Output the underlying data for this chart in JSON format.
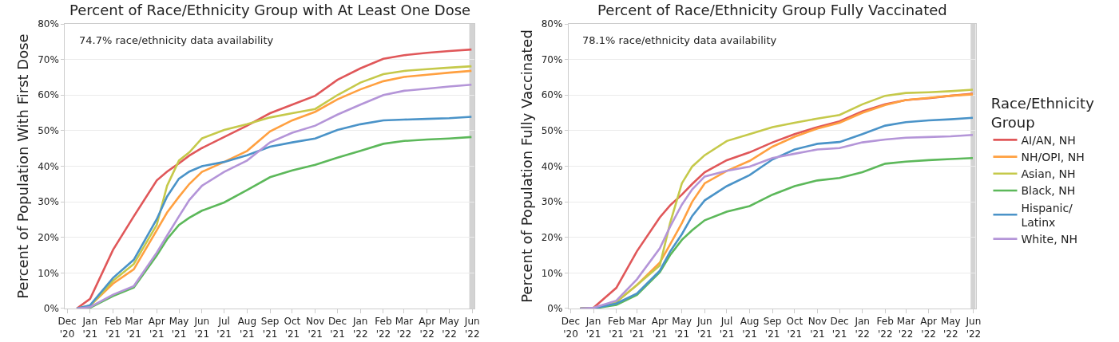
{
  "chart_data": [
    {
      "type": "line",
      "title": "Percent of Race/Ethnicity Group with At Least One Dose",
      "ylabel": "Percent of Population With First Dose",
      "annotations": [
        "74.7% race/ethnicity data availability"
      ],
      "x": [
        "2020-12-14",
        "2021-01-01",
        "2021-02-01",
        "2021-03-01",
        "2021-04-01",
        "2021-04-15",
        "2021-05-01",
        "2021-05-15",
        "2021-06-01",
        "2021-07-01",
        "2021-08-01",
        "2021-09-01",
        "2021-10-01",
        "2021-11-01",
        "2021-12-01",
        "2022-01-01",
        "2022-02-01",
        "2022-03-01",
        "2022-04-01",
        "2022-05-01",
        "2022-05-31"
      ],
      "series": [
        {
          "color": "#e05759",
          "values": [
            0,
            2.7,
            16.5,
            25.9,
            36,
            38.5,
            40.8,
            43,
            45.1,
            48.2,
            51.4,
            54.9,
            57.3,
            59.8,
            64.3,
            67.5,
            70.2,
            71.2,
            71.9,
            72.4,
            72.8
          ]
        },
        {
          "color": "#ffa040",
          "values": [
            0,
            0.8,
            7,
            11,
            22,
            27,
            31.4,
            35,
            38.4,
            41.2,
            44.3,
            49.8,
            52.9,
            55.3,
            58.8,
            61.6,
            63.9,
            65.1,
            65.7,
            66.3,
            66.8
          ]
        },
        {
          "color": "#c5c94a",
          "values": [
            0,
            0.7,
            7.8,
            12.5,
            23.5,
            34.5,
            41.6,
            43.9,
            47.8,
            50.2,
            51.8,
            53.7,
            54.9,
            56.1,
            60,
            63.5,
            65.9,
            66.8,
            67.3,
            67.7,
            68.1
          ]
        },
        {
          "color": "#5cb85a",
          "values": [
            0,
            0.2,
            3.5,
            5.9,
            14.9,
            19.5,
            23.5,
            25.5,
            27.5,
            29.8,
            33.3,
            36.9,
            38.8,
            40.4,
            42.4,
            44.3,
            46.3,
            47.1,
            47.5,
            47.8,
            48.2
          ]
        },
        {
          "color": "#4a93c8",
          "values": [
            0,
            0.9,
            8.6,
            13.7,
            25.1,
            31.5,
            36.5,
            38.5,
            40,
            41.2,
            43.1,
            45.5,
            46.7,
            47.8,
            50.2,
            51.8,
            52.9,
            53.1,
            53.3,
            53.5,
            53.9
          ]
        },
        {
          "color": "#b495d8",
          "values": [
            0,
            0.4,
            3.9,
            6.3,
            15.7,
            20.5,
            25.9,
            30.5,
            34.5,
            38.4,
            41.6,
            46.7,
            49.4,
            51.4,
            54.5,
            57.3,
            60,
            61.2,
            61.8,
            62.4,
            62.9
          ]
        }
      ],
      "xlim": [
        "2020-11-28",
        "2022-06-04"
      ],
      "xticks": [
        {
          "value": "2020-12-01",
          "label": "Dec\n'20"
        },
        {
          "value": "2021-01-01",
          "label": "Jan\n'21"
        },
        {
          "value": "2021-02-01",
          "label": "Feb\n'21"
        },
        {
          "value": "2021-03-01",
          "label": "Mar\n'21"
        },
        {
          "value": "2021-04-01",
          "label": "Apr\n'21"
        },
        {
          "value": "2021-05-01",
          "label": "May\n'21"
        },
        {
          "value": "2021-06-01",
          "label": "Jun\n'21"
        },
        {
          "value": "2021-07-01",
          "label": "Jul\n'21"
        },
        {
          "value": "2021-08-01",
          "label": "Aug\n'21"
        },
        {
          "value": "2021-09-01",
          "label": "Sep\n'21"
        },
        {
          "value": "2021-10-01",
          "label": "Oct\n'21"
        },
        {
          "value": "2021-11-01",
          "label": "Nov\n'21"
        },
        {
          "value": "2021-12-01",
          "label": "Dec\n'21"
        },
        {
          "value": "2022-01-01",
          "label": "Jan\n'22"
        },
        {
          "value": "2022-02-01",
          "label": "Feb\n'22"
        },
        {
          "value": "2022-03-01",
          "label": "Mar\n'22"
        },
        {
          "value": "2022-04-01",
          "label": "Apr\n'22"
        },
        {
          "value": "2022-05-01",
          "label": "May\n'22"
        },
        {
          "value": "2022-06-01",
          "label": "Jun\n'22"
        }
      ],
      "ylim": [
        0,
        80
      ],
      "yticks": [
        {
          "value": 0,
          "label": "0%"
        },
        {
          "value": 10,
          "label": "10%"
        },
        {
          "value": 20,
          "label": "20%"
        },
        {
          "value": 30,
          "label": "30%"
        },
        {
          "value": 40,
          "label": "40%"
        },
        {
          "value": 50,
          "label": "50%"
        },
        {
          "value": 60,
          "label": "60%"
        },
        {
          "value": 70,
          "label": "70%"
        },
        {
          "value": 80,
          "label": "80%"
        }
      ],
      "bands": [
        {
          "axis": "x",
          "from": "2022-05-28",
          "to": "2022-06-04",
          "color": "#d3d3d3"
        }
      ],
      "grid": "y",
      "line_style": "solid",
      "marker": "none"
    },
    {
      "type": "line",
      "title": "Percent of Race/Ethnicity Group Fully Vaccinated",
      "ylabel": "Percent of Population Fully Vaccinated",
      "legend_title": "Race/Ethnicity\nGroup",
      "annotations": [
        "78.1% race/ethnicity data availability"
      ],
      "x": [
        "2020-12-14",
        "2021-01-01",
        "2021-02-01",
        "2021-03-01",
        "2021-04-01",
        "2021-04-15",
        "2021-05-01",
        "2021-05-15",
        "2021-06-01",
        "2021-07-01",
        "2021-08-01",
        "2021-09-01",
        "2021-10-01",
        "2021-11-01",
        "2021-12-01",
        "2022-01-01",
        "2022-02-01",
        "2022-03-01",
        "2022-04-01",
        "2022-05-01",
        "2022-05-31"
      ],
      "series": [
        {
          "name": "AI/AN, NH",
          "color": "#e05759",
          "values": [
            0,
            0.2,
            5.8,
            16.1,
            25.6,
            29,
            32,
            35,
            38.3,
            41.7,
            43.9,
            46.7,
            49,
            51,
            52.6,
            55.4,
            57.4,
            58.6,
            59.1,
            59.8,
            60.4
          ]
        },
        {
          "name": "NH/OPI, NH",
          "color": "#ffa040",
          "values": [
            0,
            0.2,
            1.8,
            6.6,
            12.9,
            18,
            24,
            30,
            35.2,
            38.7,
            41.5,
            45.5,
            48.3,
            50.6,
            52.2,
            55,
            57.2,
            58.6,
            59.2,
            59.8,
            60.2
          ]
        },
        {
          "name": "Asian, NH",
          "color": "#c5c94a",
          "values": [
            0,
            0.2,
            1.8,
            6.6,
            12.1,
            24,
            35.2,
            39.9,
            43.1,
            47.1,
            49,
            51,
            52.2,
            53.4,
            54.4,
            57.4,
            59.8,
            60.6,
            60.8,
            61.1,
            61.5
          ]
        },
        {
          "name": "Black, NH",
          "color": "#5cb85a",
          "values": [
            0,
            0,
            1,
            3.8,
            10.2,
            15,
            19.3,
            22,
            24.8,
            27.2,
            28.8,
            32,
            34.4,
            36,
            36.7,
            38.3,
            40.7,
            41.3,
            41.7,
            42,
            42.3
          ]
        },
        {
          "name": "Hispanic/\nLatinx",
          "color": "#4a93c8",
          "values": [
            0,
            0,
            1.4,
            4.2,
            10.6,
            16,
            20.9,
            26,
            30.4,
            34.4,
            37.5,
            41.9,
            44.7,
            46.3,
            46.8,
            49,
            51.4,
            52.4,
            52.9,
            53.2,
            53.6
          ]
        },
        {
          "name": "White, NH",
          "color": "#b495d8",
          "values": [
            0,
            0.2,
            2.2,
            8.2,
            16.9,
            23,
            29.2,
            33.5,
            37.1,
            38.7,
            39.9,
            42.3,
            43.5,
            44.7,
            45.1,
            46.7,
            47.5,
            48,
            48.2,
            48.4,
            48.8
          ]
        }
      ],
      "xlim": [
        "2020-11-28",
        "2022-06-04"
      ],
      "xticks": [
        {
          "value": "2020-12-01",
          "label": "Dec\n'20"
        },
        {
          "value": "2021-01-01",
          "label": "Jan\n'21"
        },
        {
          "value": "2021-02-01",
          "label": "Feb\n'21"
        },
        {
          "value": "2021-03-01",
          "label": "Mar\n'21"
        },
        {
          "value": "2021-04-01",
          "label": "Apr\n'21"
        },
        {
          "value": "2021-05-01",
          "label": "May\n'21"
        },
        {
          "value": "2021-06-01",
          "label": "Jun\n'21"
        },
        {
          "value": "2021-07-01",
          "label": "Jul\n'21"
        },
        {
          "value": "2021-08-01",
          "label": "Aug\n'21"
        },
        {
          "value": "2021-09-01",
          "label": "Sep\n'21"
        },
        {
          "value": "2021-10-01",
          "label": "Oct\n'21"
        },
        {
          "value": "2021-11-01",
          "label": "Nov\n'21"
        },
        {
          "value": "2021-12-01",
          "label": "Dec\n'21"
        },
        {
          "value": "2022-01-01",
          "label": "Jan\n'22"
        },
        {
          "value": "2022-02-01",
          "label": "Feb\n'22"
        },
        {
          "value": "2022-03-01",
          "label": "Mar\n'22"
        },
        {
          "value": "2022-04-01",
          "label": "Apr\n'22"
        },
        {
          "value": "2022-05-01",
          "label": "May\n'22"
        },
        {
          "value": "2022-06-01",
          "label": "Jun\n'22"
        }
      ],
      "ylim": [
        0,
        80
      ],
      "yticks": [
        {
          "value": 0,
          "label": "0%"
        },
        {
          "value": 10,
          "label": "10%"
        },
        {
          "value": 20,
          "label": "20%"
        },
        {
          "value": 30,
          "label": "30%"
        },
        {
          "value": 40,
          "label": "40%"
        },
        {
          "value": 50,
          "label": "50%"
        },
        {
          "value": 60,
          "label": "60%"
        },
        {
          "value": 70,
          "label": "70%"
        },
        {
          "value": 80,
          "label": "80%"
        }
      ],
      "bands": [
        {
          "axis": "x",
          "from": "2022-05-28",
          "to": "2022-06-04",
          "color": "#d3d3d3"
        }
      ],
      "grid": "y",
      "legend": "right",
      "line_style": "solid",
      "marker": "none"
    }
  ]
}
